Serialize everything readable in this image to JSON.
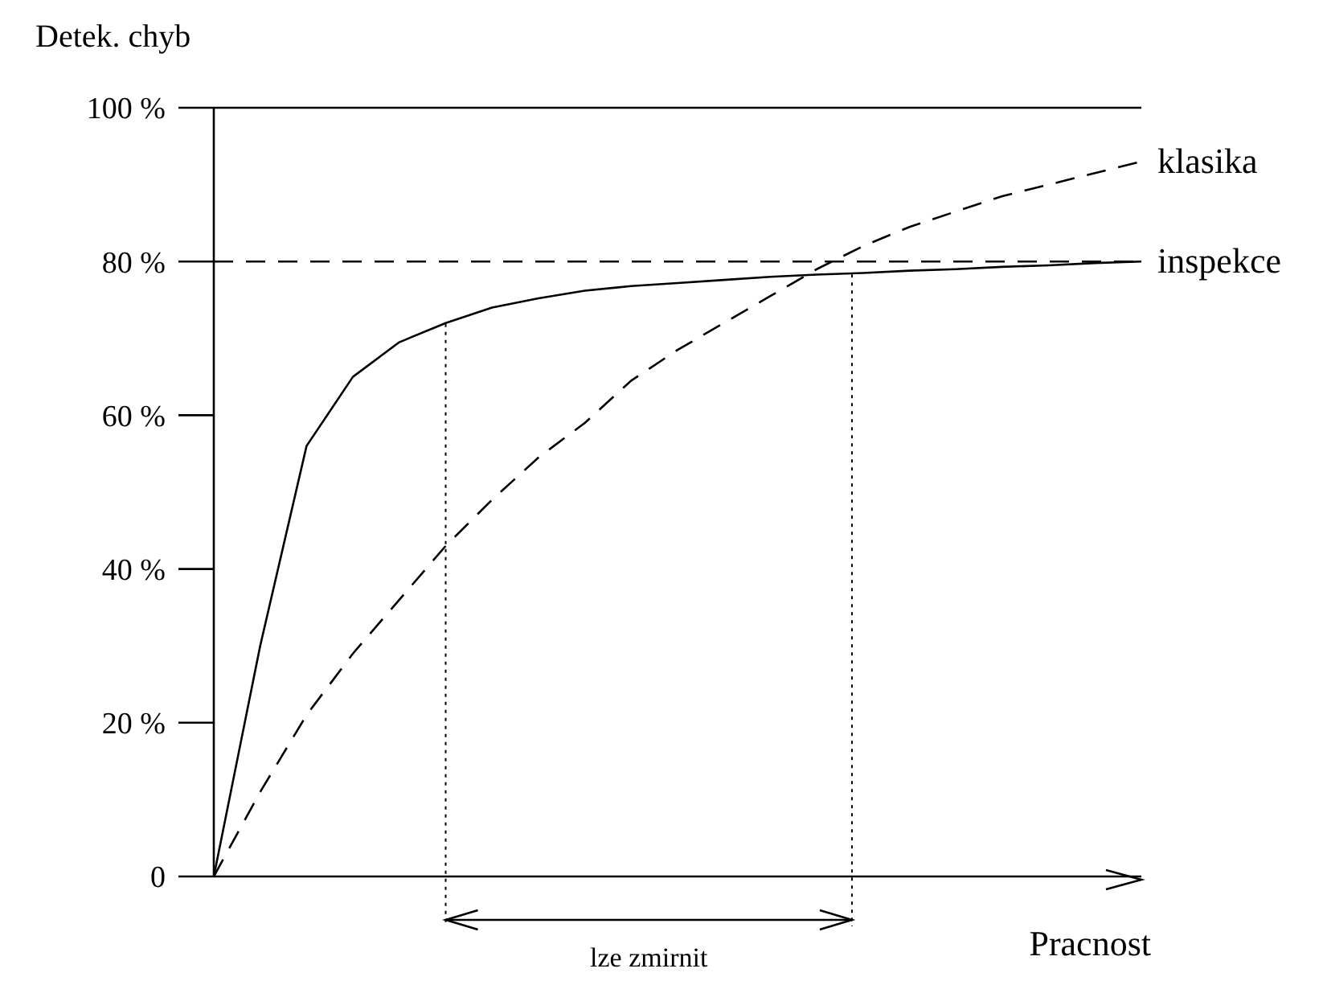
{
  "chart_data": {
    "type": "line",
    "ylabel": "Detek. chyb",
    "xlabel": "Pracnost",
    "categories": [
      null,
      null,
      null,
      null,
      null,
      null,
      null,
      null,
      null,
      null,
      null,
      null,
      null,
      null,
      null,
      null,
      null,
      null,
      null,
      null,
      null
    ],
    "series": [
      {
        "name": "klasika",
        "color": "#000000",
        "line_style": "dashed",
        "values": [
          0,
          11,
          21,
          29,
          36,
          43,
          49,
          54.5,
          59,
          64.5,
          68.5,
          72,
          75.5,
          79,
          82,
          84.5,
          86.5,
          88.5,
          90,
          91.5,
          93
        ]
      },
      {
        "name": "inspekce",
        "color": "#000000",
        "line_style": "solid",
        "values": [
          0,
          30,
          56,
          65,
          69.5,
          72,
          74,
          75.2,
          76.2,
          76.8,
          77.2,
          77.6,
          78,
          78.3,
          78.5,
          78.8,
          79,
          79.3,
          79.5,
          79.8,
          80
        ]
      }
    ],
    "ylim": [
      0,
      100
    ],
    "yticks": [
      0,
      {
        "value": 20,
        "label": "20 %"
      },
      {
        "value": 40,
        "label": "40 %"
      },
      {
        "value": 60,
        "label": "60 %"
      },
      {
        "value": 80,
        "label": "80 %"
      },
      {
        "value": 100,
        "label": "100 %"
      }
    ],
    "ref_lines": [
      {
        "axis": "y",
        "value": 80,
        "line_style": "dashed",
        "color": "#000000"
      },
      {
        "axis": "y",
        "value": 100,
        "line_style": "solid",
        "color": "#000000"
      }
    ],
    "annotations": [
      "lze zmirnit"
    ],
    "legend": false,
    "marker": "none",
    "tick_labels": "y"
  }
}
